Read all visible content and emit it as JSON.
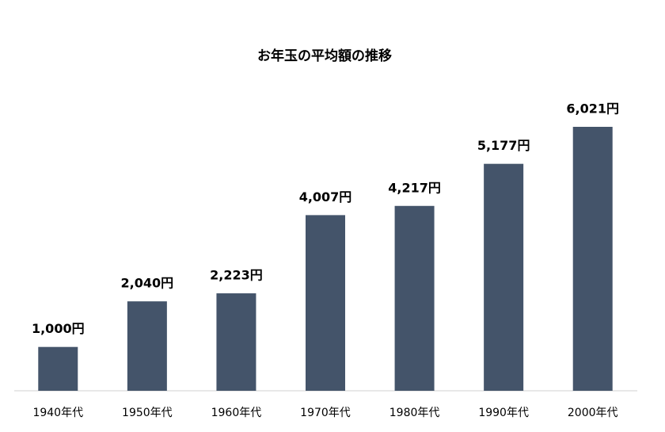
{
  "chart_data": {
    "type": "bar",
    "title": "お年玉の平均額の推移",
    "categories": [
      "1940年代",
      "1950年代",
      "1960年代",
      "1970年代",
      "1980年代",
      "1990年代",
      "2000年代"
    ],
    "values": [
      1000,
      2040,
      2223,
      4007,
      4217,
      5177,
      6021
    ],
    "value_labels": [
      "1,000円",
      "2,040円",
      "2,223円",
      "4,007円",
      "4,217円",
      "5,177円",
      "6,021円"
    ],
    "color": "#44546a"
  }
}
